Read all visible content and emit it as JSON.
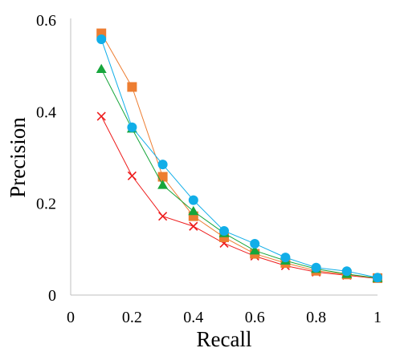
{
  "chart_data": {
    "type": "line",
    "xlabel": "Recall",
    "ylabel": "Precision",
    "xlim": [
      0,
      1
    ],
    "ylim": [
      0,
      0.6
    ],
    "x_ticks": [
      "0",
      "0.2",
      "0.4",
      "0.6",
      "0.8",
      "1"
    ],
    "y_ticks": [
      "0",
      "0.2",
      "0.4",
      "0.6"
    ],
    "grid": false,
    "legend": "none",
    "series": [
      {
        "marker": "x",
        "color": "#ee1c1c",
        "x": [
          0.1,
          0.2,
          0.3,
          0.4,
          0.5,
          0.6,
          0.7,
          0.8,
          0.9,
          1.0
        ],
        "y": [
          0.39,
          0.26,
          0.172,
          0.15,
          0.113,
          0.085,
          0.064,
          0.05,
          0.043,
          0.036
        ]
      },
      {
        "marker": "square",
        "color": "#ed7d31",
        "x": [
          0.1,
          0.2,
          0.3,
          0.4,
          0.5,
          0.6,
          0.7,
          0.8,
          0.9,
          1.0
        ],
        "y": [
          0.571,
          0.454,
          0.258,
          0.172,
          0.126,
          0.09,
          0.07,
          0.053,
          0.045,
          0.037
        ]
      },
      {
        "marker": "triangle",
        "color": "#17a63c",
        "x": [
          0.1,
          0.2,
          0.3,
          0.4,
          0.5,
          0.6,
          0.7,
          0.8,
          0.9,
          1.0
        ],
        "y": [
          0.493,
          0.363,
          0.24,
          0.183,
          0.135,
          0.097,
          0.075,
          0.057,
          0.046,
          0.037
        ]
      },
      {
        "marker": "circle",
        "color": "#11aee8",
        "x": [
          0.1,
          0.2,
          0.3,
          0.4,
          0.5,
          0.6,
          0.7,
          0.8,
          0.9,
          1.0
        ],
        "y": [
          0.558,
          0.366,
          0.285,
          0.207,
          0.14,
          0.112,
          0.082,
          0.06,
          0.052,
          0.038
        ]
      }
    ]
  }
}
